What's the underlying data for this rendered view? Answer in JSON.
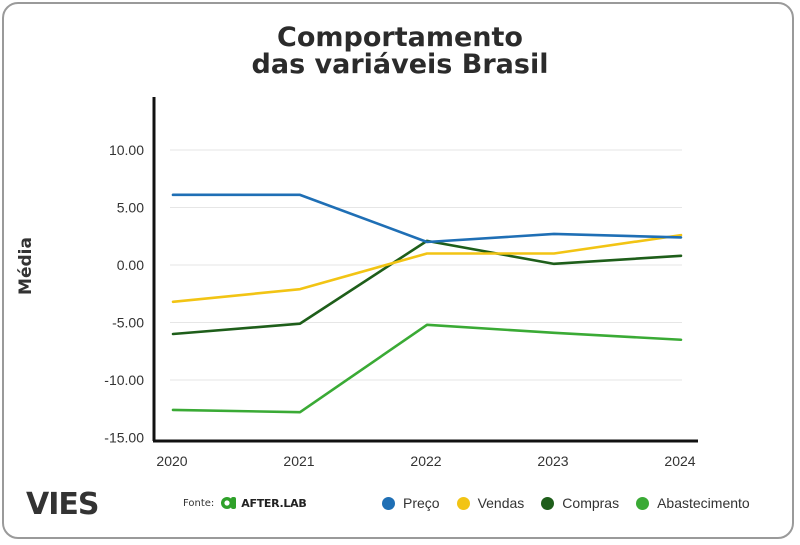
{
  "chart_data": {
    "type": "line",
    "title_line1": "Comportamento",
    "title_line2": "das variáveis Brasil",
    "ylabel": "Média",
    "xlabel": "",
    "x": [
      "2020",
      "2021",
      "2022",
      "2023",
      "2024"
    ],
    "ylim": [
      -15,
      15
    ],
    "yticks": [
      10,
      5,
      0,
      -5,
      -10,
      -15
    ],
    "ytick_labels": [
      "10.00",
      "5.00",
      "0.00",
      "-5.00",
      "-10.00",
      "-15.00"
    ],
    "grid": true,
    "legend_position": "bottom-right",
    "series": [
      {
        "name": "Preço",
        "color": "#1f6fb5",
        "values": [
          6.1,
          6.1,
          2.0,
          2.7,
          2.4
        ]
      },
      {
        "name": "Vendas",
        "color": "#f2c414",
        "values": [
          -3.2,
          -2.1,
          1.0,
          1.0,
          2.6
        ]
      },
      {
        "name": "Compras",
        "color": "#1e5e1a",
        "values": [
          -6.0,
          -5.1,
          2.1,
          0.1,
          0.8
        ]
      },
      {
        "name": "Abastecimento",
        "color": "#3aaa35",
        "values": [
          -12.6,
          -12.8,
          -5.2,
          -5.9,
          -6.5
        ]
      }
    ]
  },
  "footer": {
    "logo": "VIES",
    "source_label": "Fonte:",
    "source_name": "AFTER.LAB"
  }
}
